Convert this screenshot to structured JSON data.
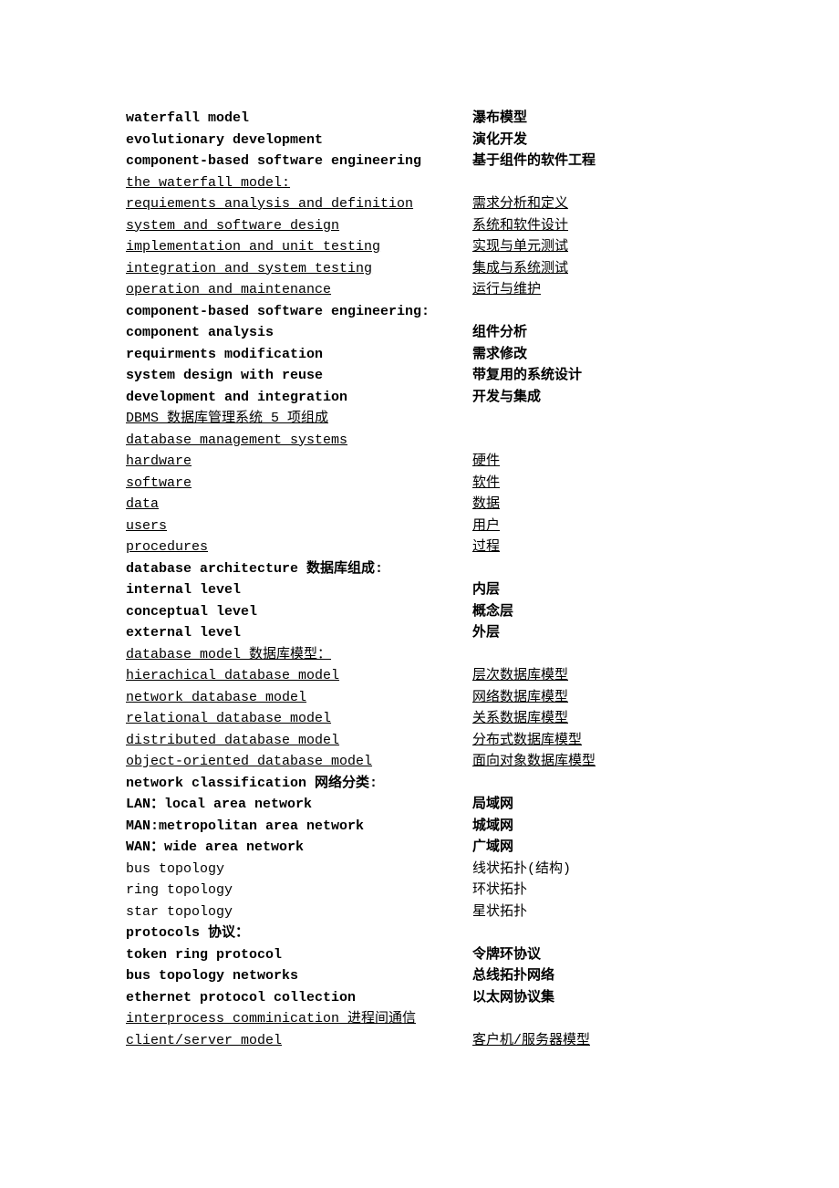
{
  "rows": [
    {
      "left": "waterfall model",
      "right": "瀑布模型",
      "style": "bold"
    },
    {
      "left": "evolutionary development",
      "right": "演化开发",
      "style": "bold"
    },
    {
      "left": "component-based software engineering",
      "right": "基于组件的软件工程",
      "style": "bold"
    },
    {
      "left": "the waterfall model:",
      "right": "",
      "style": "underline"
    },
    {
      "left": "requiements analysis and definition",
      "right": "需求分析和定义",
      "style": "underline"
    },
    {
      "left": "system and software design",
      "right": "系统和软件设计",
      "style": "underline"
    },
    {
      "left": "implementation and unit testing",
      "right": "实现与单元测试",
      "style": "underline"
    },
    {
      "left": "integration and system testing",
      "right": "集成与系统测试",
      "style": "underline"
    },
    {
      "left": "operation and maintenance",
      "right": "运行与维护",
      "style": "underline"
    },
    {
      "left": "component-based software engineering:",
      "right": "",
      "style": "bold"
    },
    {
      "left": "component analysis",
      "right": "组件分析",
      "style": "bold"
    },
    {
      "left": "requirments modification",
      "right": "需求修改",
      "style": "bold"
    },
    {
      "left": "system design with reuse",
      "right": "带复用的系统设计",
      "style": "bold"
    },
    {
      "left": "development and integration",
      "right": "开发与集成",
      "style": "bold"
    },
    {
      "left": "DBMS 数据库管理系统 5 项组成",
      "right": "",
      "style": "underline"
    },
    {
      "left": "database management systems",
      "right": "",
      "style": "underline"
    },
    {
      "left": "hardware",
      "right": "硬件",
      "style": "underline"
    },
    {
      "left": "software",
      "right": "软件",
      "style": "underline"
    },
    {
      "left": "data",
      "right": "数据",
      "style": "underline"
    },
    {
      "left": "users",
      "right": "用户",
      "style": "underline"
    },
    {
      "left": "procedures",
      "right": "过程",
      "style": "underline"
    },
    {
      "left": "database architecture 数据库组成:",
      "right": "",
      "style": "bold"
    },
    {
      "left": "internal level",
      "right": "内层",
      "style": "bold"
    },
    {
      "left": "conceptual level",
      "right": "概念层",
      "style": "bold"
    },
    {
      "left": "external level",
      "right": "外层",
      "style": "bold"
    },
    {
      "left": "database model 数据库模型：",
      "right": "",
      "style": "underline"
    },
    {
      "left": "hierachical database model",
      "right": "层次数据库模型",
      "style": "underline"
    },
    {
      "left": "network database model",
      "right": "网络数据库模型",
      "style": "underline"
    },
    {
      "left": "relational database model",
      "right": "关系数据库模型",
      "style": "underline"
    },
    {
      "left": "distributed database model",
      "right": "分布式数据库模型",
      "style": "underline"
    },
    {
      "left": "object-oriented database model",
      "right": "面向对象数据库模型",
      "style": "underline"
    },
    {
      "left": "network classification 网络分类:",
      "right": "",
      "style": "bold"
    },
    {
      "left": "LAN：local area network",
      "right": "局域网",
      "style": "bold"
    },
    {
      "left": "MAN:metropolitan area network",
      "right": "城域网",
      "style": "bold"
    },
    {
      "left": "WAN：wide area network",
      "right": "广域网",
      "style": "bold"
    },
    {
      "left": "bus topology",
      "right": "线状拓扑(结构)",
      "style": "normal"
    },
    {
      "left": "ring topology",
      "right": "环状拓扑",
      "style": "normal"
    },
    {
      "left": "star topology",
      "right": "星状拓扑",
      "style": "normal"
    },
    {
      "left": "protocols 协议：",
      "right": "",
      "style": "bold"
    },
    {
      "left": "token ring protocol",
      "right": "令牌环协议",
      "style": "bold"
    },
    {
      "left": "bus topology networks",
      "right": "总线拓扑网络",
      "style": "bold"
    },
    {
      "left": "ethernet protocol collection",
      "right": "以太网协议集",
      "style": "bold"
    },
    {
      "left": "interprocess comminication 进程间通信",
      "right": "",
      "style": "underline"
    },
    {
      "left": "client/server model",
      "right": "客户机/服务器模型",
      "style": "underline"
    }
  ]
}
